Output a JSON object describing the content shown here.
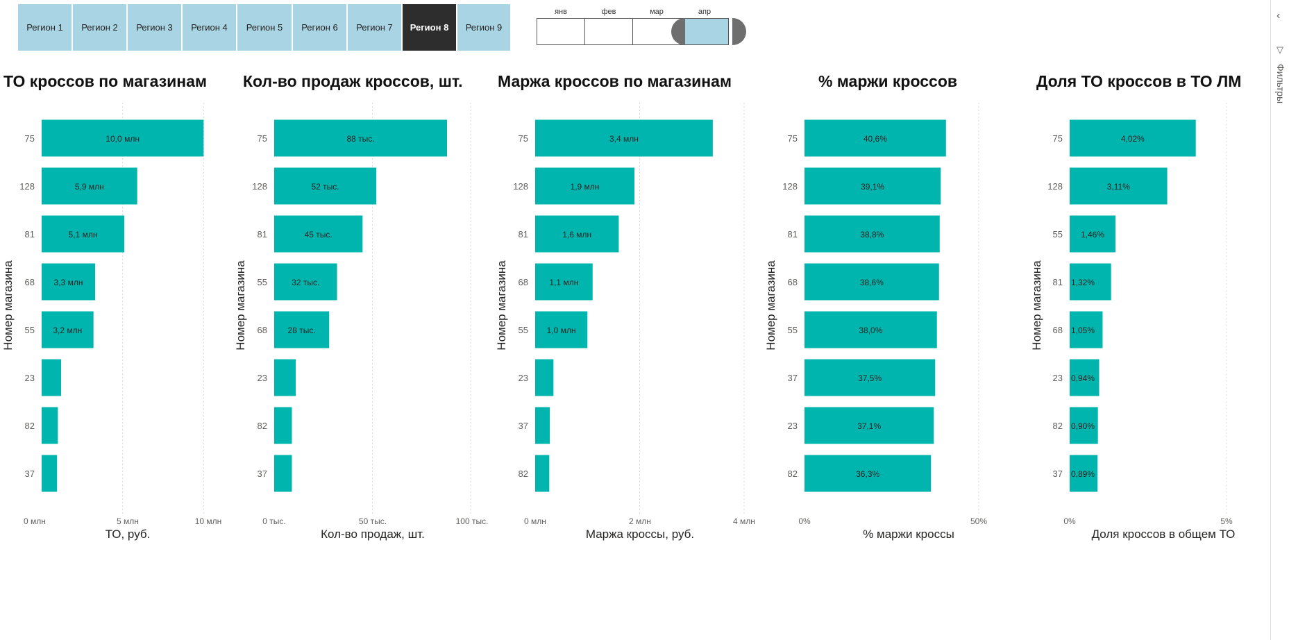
{
  "regions": {
    "items": [
      "Регион 1",
      "Регион 2",
      "Регион 3",
      "Регион 4",
      "Регион 5",
      "Регион 6",
      "Регион 7",
      "Регион 8",
      "Регион 9"
    ],
    "selected_index": 7
  },
  "months": {
    "items": [
      "янв",
      "фев",
      "мар",
      "апр"
    ],
    "selected_index": 3
  },
  "filter_pane": {
    "label": "Фильтры",
    "collapse_icon": "chevron-left-icon",
    "filter_icon": "filter-icon"
  },
  "colors": {
    "bar": "#00b5ad",
    "selected_region": "#2d2d2d",
    "region": "#a9d4e4",
    "selected_month": "#a9d4e4"
  },
  "chart_data": [
    {
      "type": "bar",
      "orientation": "horizontal",
      "title": "ТО кроссов по магазинам",
      "ylabel": "Номер магазина",
      "xlabel": "ТО, руб.",
      "categories": [
        "75",
        "128",
        "81",
        "68",
        "55",
        "23",
        "82",
        "37"
      ],
      "values": [
        10.0,
        5.9,
        5.1,
        3.3,
        3.2,
        1.2,
        1.0,
        0.95
      ],
      "data_labels": [
        "10,0 млн",
        "5,9 млн",
        "5,1 млн",
        "3,3 млн",
        "3,2 млн",
        "",
        "",
        ""
      ],
      "xlim": [
        0,
        10.5
      ],
      "xticks": [
        0,
        5,
        10
      ],
      "xtick_labels": [
        "0 млн",
        "5 млн",
        "10 млн"
      ],
      "unit": "млн руб."
    },
    {
      "type": "bar",
      "orientation": "horizontal",
      "title": "Кол-во продаж кроссов, шт.",
      "ylabel": "Номер магазина",
      "xlabel": "Кол-во продаж, шт.",
      "categories": [
        "75",
        "128",
        "81",
        "55",
        "68",
        "23",
        "82",
        "37"
      ],
      "values": [
        88,
        52,
        45,
        32,
        28,
        11,
        9,
        9
      ],
      "data_labels": [
        "88 тыс.",
        "52 тыс.",
        "45 тыс.",
        "32 тыс.",
        "28 тыс.",
        "",
        "",
        ""
      ],
      "xlim": [
        0,
        100
      ],
      "xticks": [
        0,
        50,
        100
      ],
      "xtick_labels": [
        "0 тыс.",
        "50 тыс.",
        "100 тыс."
      ],
      "unit": "тыс. шт."
    },
    {
      "type": "bar",
      "orientation": "horizontal",
      "title": "Маржа кроссов по магазинам",
      "ylabel": "Номер магазина",
      "xlabel": "Маржа кроссы, руб.",
      "categories": [
        "75",
        "128",
        "81",
        "68",
        "55",
        "23",
        "37",
        "82"
      ],
      "values": [
        3.4,
        1.9,
        1.6,
        1.1,
        1.0,
        0.35,
        0.28,
        0.27
      ],
      "data_labels": [
        "3,4 млн",
        "1,9 млн",
        "1,6 млн",
        "1,1 млн",
        "1,0 млн",
        "",
        "",
        ""
      ],
      "xlim": [
        0,
        4
      ],
      "xticks": [
        0,
        2,
        4
      ],
      "xtick_labels": [
        "0 млн",
        "2 млн",
        "4 млн"
      ],
      "unit": "млн руб."
    },
    {
      "type": "bar",
      "orientation": "horizontal",
      "title": "% маржи кроссов",
      "ylabel": "Номер магазина",
      "xlabel": "% маржи кроссы",
      "categories": [
        "75",
        "128",
        "81",
        "68",
        "55",
        "37",
        "23",
        "82"
      ],
      "values": [
        40.6,
        39.1,
        38.8,
        38.6,
        38.0,
        37.5,
        37.1,
        36.3
      ],
      "data_labels": [
        "40,6%",
        "39,1%",
        "38,8%",
        "38,6%",
        "38,0%",
        "37,5%",
        "37,1%",
        "36,3%"
      ],
      "xlim": [
        0,
        50
      ],
      "xticks": [
        0,
        50
      ],
      "xtick_labels": [
        "0%",
        "50%"
      ],
      "unit": "%"
    },
    {
      "type": "bar",
      "orientation": "horizontal",
      "title": "Доля ТО кроссов в ТО ЛМ",
      "ylabel": "Номер магазина",
      "xlabel": "Доля кроссов в общем ТО",
      "categories": [
        "75",
        "128",
        "55",
        "81",
        "68",
        "23",
        "82",
        "37"
      ],
      "values": [
        4.02,
        3.11,
        1.46,
        1.32,
        1.05,
        0.94,
        0.9,
        0.89
      ],
      "data_labels": [
        "4,02%",
        "3,11%",
        "1,46%",
        "1,32%",
        "1,05%",
        "0,94%",
        "0,90%",
        "0,89%"
      ],
      "xlim": [
        0,
        5
      ],
      "xticks": [
        0,
        5
      ],
      "xtick_labels": [
        "0%",
        "5%"
      ],
      "unit": "%"
    }
  ]
}
